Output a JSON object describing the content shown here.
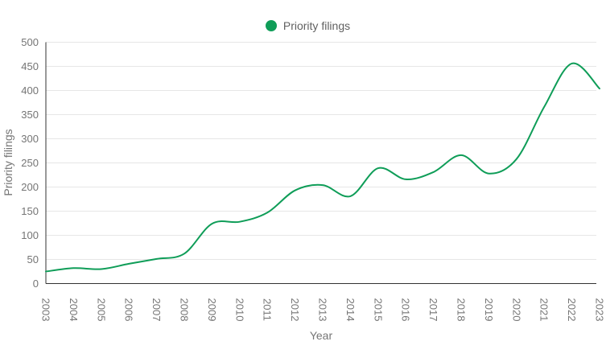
{
  "chart_data": {
    "type": "line",
    "curve": "smooth",
    "xlabel": "Year",
    "ylabel": "Priority filings",
    "x": [
      2003,
      2004,
      2005,
      2006,
      2007,
      2008,
      2009,
      2010,
      2011,
      2012,
      2013,
      2014,
      2015,
      2016,
      2017,
      2018,
      2019,
      2020,
      2021,
      2022,
      2023
    ],
    "series": [
      {
        "name": "Priority filings",
        "color": "#0f9d58",
        "values": [
          25,
          32,
          30,
          41,
          51,
          62,
          124,
          128,
          147,
          193,
          204,
          181,
          239,
          216,
          231,
          266,
          228,
          258,
          366,
          456,
          404
        ]
      }
    ],
    "ylim": [
      0,
      500
    ],
    "y_tick_step": 50,
    "grid": true,
    "legend_position": "top-center",
    "marker": "none"
  },
  "legend": {
    "items": [
      {
        "label": "Priority filings",
        "marker": "circle",
        "color": "#0f9d58"
      }
    ]
  },
  "colors": {
    "line": "#0f9d58",
    "tick_text": "#757575",
    "axis_title_text": "#757575",
    "legend_text": "#616161",
    "gridline": "#e6e6e6",
    "axis_line": "#333333",
    "background": "#ffffff"
  }
}
